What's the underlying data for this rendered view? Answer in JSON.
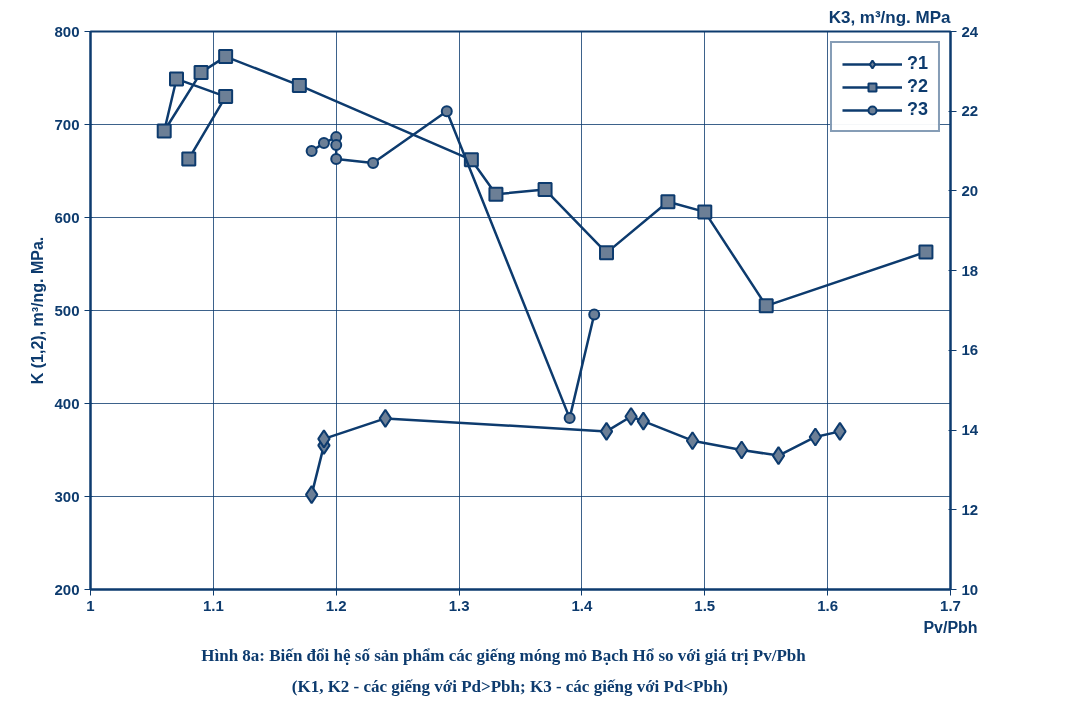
{
  "chart_data": {
    "type": "line",
    "xlabel": "Pv/Pbh",
    "ylabel": "K (1,2), m³/ng. MPa.",
    "y2label": "K3, m³/ng. MPa",
    "xlim": [
      1,
      1.7
    ],
    "xticks": [
      1,
      1.1,
      1.2,
      1.3,
      1.4,
      1.5,
      1.6,
      1.7
    ],
    "ylim": [
      200,
      800
    ],
    "yticks": [
      200,
      300,
      400,
      500,
      600,
      700,
      800
    ],
    "y2lim": [
      10,
      24
    ],
    "y2ticks": [
      10,
      12,
      14,
      16,
      18,
      20,
      22,
      24
    ],
    "grid": true,
    "legend": "top right",
    "series": [
      {
        "name": "?1",
        "color": "#0d3b6e",
        "marker": "diamond",
        "x": [
          1.18,
          1.19,
          1.19,
          1.24,
          1.42,
          1.44,
          1.45,
          1.49,
          1.53,
          1.56,
          1.59,
          1.61
        ],
        "values": [
          302,
          355,
          362,
          384,
          370,
          386,
          381,
          360,
          350,
          344,
          364,
          370
        ]
      },
      {
        "name": "?2",
        "color": "#0d3b6e",
        "marker": "square",
        "x": [
          1.08,
          1.11,
          1.07,
          1.06,
          1.09,
          1.11,
          1.17,
          1.31,
          1.33,
          1.37,
          1.42,
          1.47,
          1.5,
          1.55,
          1.68
        ],
        "values": [
          663,
          730,
          749,
          693,
          756,
          773,
          742,
          662,
          625,
          630,
          562,
          617,
          606,
          505,
          563
        ]
      },
      {
        "name": "?3",
        "color": "#0d3b6e",
        "marker": "circle",
        "axis": "y2",
        "x": [
          1.18,
          1.19,
          1.2,
          1.2,
          1.2,
          1.23,
          1.29,
          1.39,
          1.41
        ],
        "values": [
          21.0,
          21.2,
          21.35,
          21.15,
          20.8,
          20.7,
          22.0,
          14.3,
          16.9
        ]
      }
    ],
    "annotations": [
      "Hình 8a:  Biến đổi  hệ số sản phẩm  các giếng  móng  mỏ Bạch  Hổ so  với giá  trị Pv/Pbh",
      "(K1, K2 - các  giếng  với Pd>Pbh;  K3 - các  giếng  với Pd<Pbh)"
    ]
  }
}
